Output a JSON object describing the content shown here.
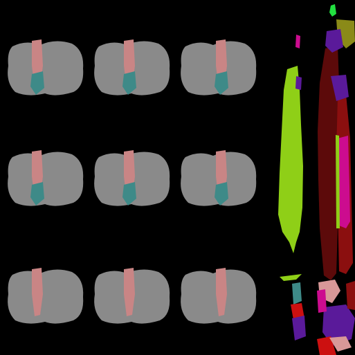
{
  "figure": {
    "background": "#000000",
    "rows": 3,
    "columns": 3,
    "panel_count": 9
  },
  "colors": {
    "tissue_gray": "#8a8a8a",
    "pink_region": "#c98585",
    "teal_region": "#3e8a88",
    "lime_strip": "#8fcf17",
    "dark_red": "#5c0a0a",
    "maroon": "#8b0f0f",
    "magenta": "#cc0c8f",
    "purple": "#5a1a9a",
    "olive": "#8a8a18",
    "bright_green": "#22e040",
    "pink_light": "#d89898",
    "red": "#cc1010"
  }
}
